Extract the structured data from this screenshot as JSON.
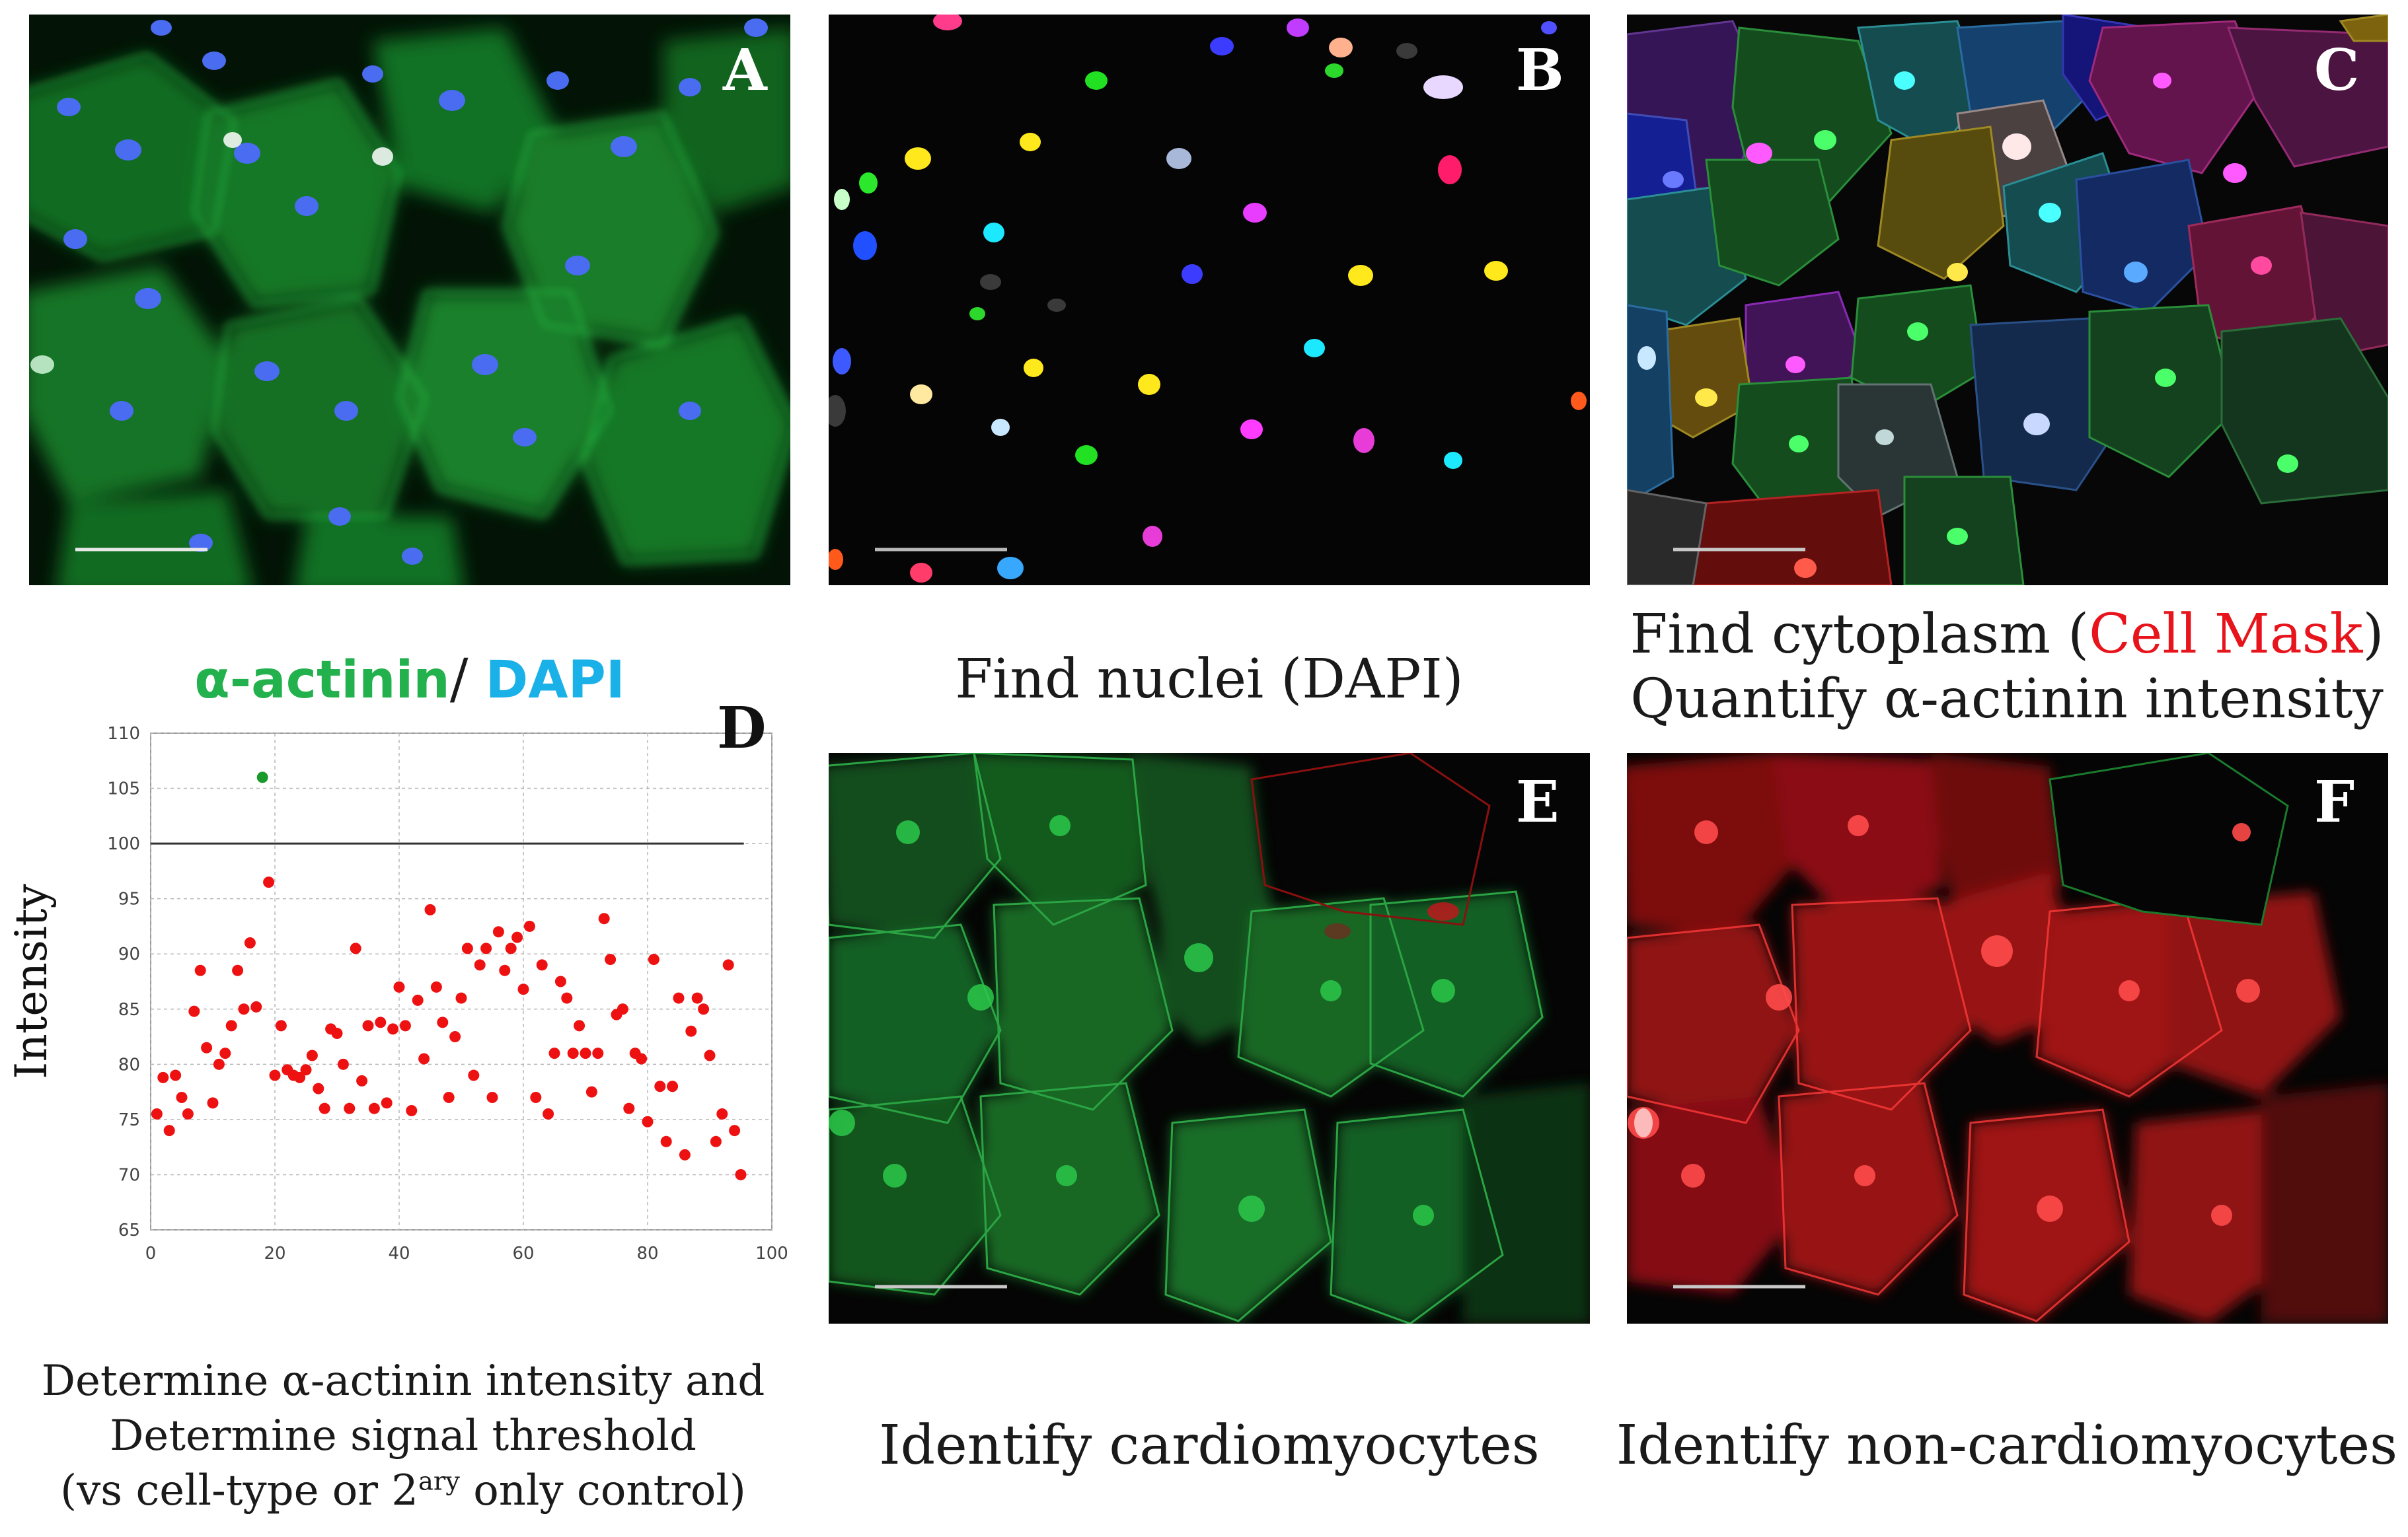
{
  "panels": {
    "a": {
      "letter": "A"
    },
    "b": {
      "letter": "B"
    },
    "c": {
      "letter": "C"
    },
    "d": {
      "letter": "D"
    },
    "e": {
      "letter": "E"
    },
    "f": {
      "letter": "F"
    }
  },
  "captions": {
    "a_stain_1": "α-actinin",
    "a_sep": "/ ",
    "a_stain_2": "DAPI",
    "b": "Find nuclei (DAPI)",
    "c_line1_pre": "Find cytoplasm (",
    "c_line1_red": "Cell Mask",
    "c_line1_post": ")",
    "c_line2": "Quantify α-actinin intensity",
    "d_line1": "Determine α-actinin intensity and",
    "d_line2": "Determine signal threshold",
    "d_line3_pre": "(vs cell-type or 2",
    "d_line3_sup": "ary",
    "d_line3_post": " only control)",
    "e": "Identify cardiomyocytes",
    "f": "Identify non-cardiomyocytes"
  },
  "colors": {
    "actinin_green": "#22b14c",
    "dapi_blue": "#1ab0e8",
    "cell_mask_red": "#e8141c",
    "point_red": "#ee1111",
    "point_green": "#1a9a2a"
  },
  "chart_data": {
    "type": "scatter",
    "title": "",
    "xlabel": "",
    "ylabel": "Intensity",
    "xlim": [
      0,
      100
    ],
    "ylim": [
      65,
      110
    ],
    "xticks": [
      0,
      20,
      40,
      60,
      80,
      100
    ],
    "yticks": [
      65,
      70,
      75,
      80,
      85,
      90,
      95,
      100,
      105,
      110
    ],
    "threshold": 100,
    "grid": true,
    "above_threshold": [
      [
        18,
        106
      ]
    ],
    "points": [
      [
        1,
        75.5
      ],
      [
        2,
        78.8
      ],
      [
        3,
        74
      ],
      [
        4,
        79
      ],
      [
        5,
        77
      ],
      [
        6,
        75.5
      ],
      [
        7,
        84.8
      ],
      [
        8,
        88.5
      ],
      [
        9,
        81.5
      ],
      [
        10,
        76.5
      ],
      [
        11,
        80
      ],
      [
        12,
        81
      ],
      [
        13,
        83.5
      ],
      [
        14,
        88.5
      ],
      [
        15,
        85
      ],
      [
        16,
        91
      ],
      [
        17,
        85.2
      ],
      [
        19,
        96.5
      ],
      [
        20,
        79
      ],
      [
        21,
        83.5
      ],
      [
        22,
        79.5
      ],
      [
        23,
        79
      ],
      [
        24,
        78.8
      ],
      [
        25,
        79.5
      ],
      [
        26,
        80.8
      ],
      [
        27,
        77.8
      ],
      [
        28,
        76
      ],
      [
        29,
        83.2
      ],
      [
        30,
        82.8
      ],
      [
        31,
        80
      ],
      [
        32,
        76
      ],
      [
        33,
        90.5
      ],
      [
        34,
        78.5
      ],
      [
        35,
        83.5
      ],
      [
        36,
        76
      ],
      [
        37,
        83.8
      ],
      [
        38,
        76.5
      ],
      [
        39,
        83.2
      ],
      [
        40,
        87
      ],
      [
        41,
        83.5
      ],
      [
        42,
        75.8
      ],
      [
        43,
        85.8
      ],
      [
        44,
        80.5
      ],
      [
        45,
        94
      ],
      [
        46,
        87
      ],
      [
        47,
        83.8
      ],
      [
        48,
        77
      ],
      [
        49,
        82.5
      ],
      [
        50,
        86
      ],
      [
        51,
        90.5
      ],
      [
        52,
        79
      ],
      [
        53,
        89
      ],
      [
        54,
        90.5
      ],
      [
        55,
        77
      ],
      [
        56,
        92
      ],
      [
        57,
        88.5
      ],
      [
        58,
        90.5
      ],
      [
        59,
        91.5
      ],
      [
        60,
        86.8
      ],
      [
        61,
        92.5
      ],
      [
        62,
        77
      ],
      [
        63,
        89
      ],
      [
        64,
        75.5
      ],
      [
        65,
        81
      ],
      [
        66,
        87.5
      ],
      [
        67,
        86
      ],
      [
        68,
        81
      ],
      [
        69,
        83.5
      ],
      [
        70,
        81
      ],
      [
        71,
        77.5
      ],
      [
        72,
        81
      ],
      [
        73,
        93.2
      ],
      [
        74,
        89.5
      ],
      [
        75,
        84.5
      ],
      [
        76,
        85
      ],
      [
        77,
        76
      ],
      [
        78,
        81
      ],
      [
        79,
        80.5
      ],
      [
        80,
        74.8
      ],
      [
        81,
        89.5
      ],
      [
        82,
        78
      ],
      [
        83,
        73
      ],
      [
        84,
        78
      ],
      [
        85,
        86
      ],
      [
        86,
        71.8
      ],
      [
        87,
        83
      ],
      [
        88,
        86
      ],
      [
        89,
        85
      ],
      [
        90,
        80.8
      ],
      [
        91,
        73
      ],
      [
        92,
        75.5
      ],
      [
        93,
        89
      ],
      [
        94,
        74
      ],
      [
        95,
        70
      ]
    ]
  }
}
